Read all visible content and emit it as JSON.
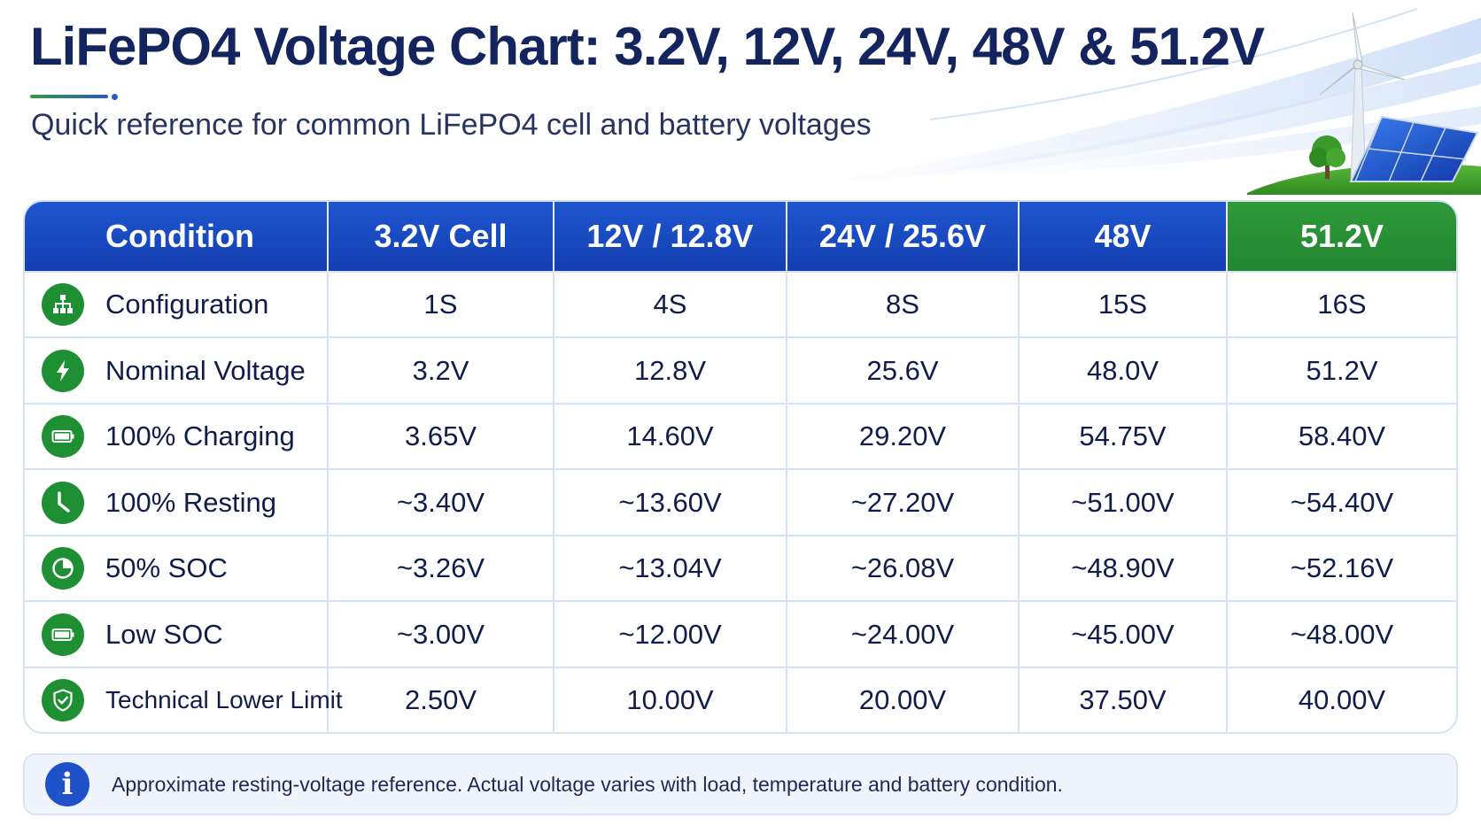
{
  "title": "LiFePO4 Voltage Chart: 3.2V, 12V, 24V, 48V & 51.2V",
  "subtitle": "Quick reference for common LiFePO4 cell and battery voltages",
  "colors": {
    "header_blue": "#1a4cc4",
    "header_green": "#2a9338",
    "icon_green": "#1f8f34",
    "title_navy": "#13245e",
    "info_blue": "#1f52c9"
  },
  "table": {
    "headers": [
      "Condition",
      "3.2V Cell",
      "12V / 12.8V",
      "24V / 25.6V",
      "48V",
      "51.2V"
    ],
    "rows": [
      {
        "icon": "network-icon",
        "label": "Configuration",
        "values": [
          "1S",
          "4S",
          "8S",
          "15S",
          "16S"
        ]
      },
      {
        "icon": "lightning-icon",
        "label": "Nominal Voltage",
        "values": [
          "3.2V",
          "12.8V",
          "25.6V",
          "48.0V",
          "51.2V"
        ]
      },
      {
        "icon": "battery-full-icon",
        "label": "100% Charging",
        "values": [
          "3.65V",
          "14.60V",
          "29.20V",
          "54.75V",
          "58.40V"
        ]
      },
      {
        "icon": "clock-icon",
        "label": "100% Resting",
        "values": [
          "~3.40V",
          "~13.60V",
          "~27.20V",
          "~51.00V",
          "~54.40V"
        ]
      },
      {
        "icon": "pie-half-icon",
        "label": "50% SOC",
        "values": [
          "~3.26V",
          "~13.04V",
          "~26.08V",
          "~48.90V",
          "~52.16V"
        ]
      },
      {
        "icon": "battery-low-icon",
        "label": "Low SOC",
        "values": [
          "~3.00V",
          "~12.00V",
          "~24.00V",
          "~45.00V",
          "~48.00V"
        ]
      },
      {
        "icon": "shield-check-icon",
        "label": "Technical Lower Limit",
        "values": [
          "2.50V",
          "10.00V",
          "20.00V",
          "37.50V",
          "40.00V"
        ]
      }
    ]
  },
  "note": {
    "icon": "info-icon",
    "text": "Approximate resting-voltage reference. Actual voltage varies with load, temperature and battery condition."
  },
  "illustration": {
    "icons": [
      "wind-turbine-icon",
      "solar-panel-icon",
      "tree-icon"
    ]
  }
}
